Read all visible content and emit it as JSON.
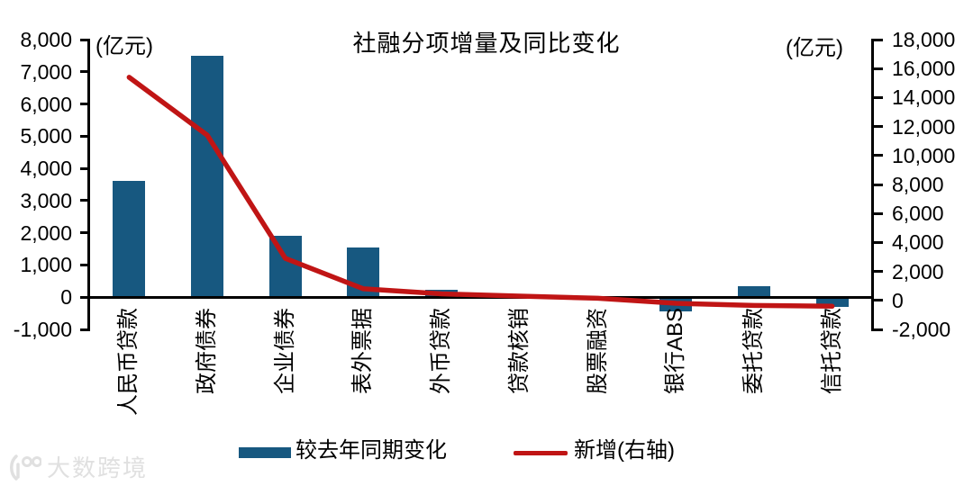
{
  "title": "社融分项增量及同比变化",
  "watermark": "大数跨境",
  "colors": {
    "bar": "#175880",
    "line": "#C01515",
    "axis": "#000000",
    "watermark": "#E0E0E0"
  },
  "left_axis": {
    "unit": "(亿元)",
    "min": -1000,
    "max": 8000,
    "step": 1000,
    "ticks": [
      "8,000",
      "7,000",
      "6,000",
      "5,000",
      "4,000",
      "3,000",
      "2,000",
      "1,000",
      "0",
      "-1,000"
    ]
  },
  "right_axis": {
    "unit": "(亿元)",
    "min": -2000,
    "max": 18000,
    "step": 2000,
    "ticks": [
      "18,000",
      "16,000",
      "14,000",
      "12,000",
      "10,000",
      "8,000",
      "6,000",
      "4,000",
      "2,000",
      "0",
      "-2,000"
    ]
  },
  "legend": [
    {
      "label": "较去年同期变化",
      "marker": "bar"
    },
    {
      "label": "新增(右轴)",
      "marker": "line"
    }
  ],
  "chart_data": {
    "type": "bar+line",
    "title": "社融分项增量及同比变化",
    "categories": [
      "人民币贷款",
      "政府债券",
      "企业债券",
      "表外票据",
      "外币贷款",
      "贷款核销",
      "股票融资",
      "银行ABS",
      "委托贷款",
      "信托贷款"
    ],
    "series": [
      {
        "name": "较去年同期变化",
        "type": "bar",
        "axis": "left",
        "values": [
          3600,
          7500,
          1900,
          1550,
          220,
          0,
          0,
          -450,
          330,
          -300
        ]
      },
      {
        "name": "新增(右轴)",
        "type": "line",
        "axis": "right",
        "values": [
          15400,
          11400,
          2900,
          800,
          450,
          300,
          150,
          -200,
          -350,
          -400
        ]
      }
    ],
    "left_ylim": [
      -1000,
      8000
    ],
    "right_ylim": [
      -2000,
      18000
    ],
    "left_axis_label": "(亿元)",
    "right_axis_label": "(亿元)",
    "grid": false,
    "legend_position": "bottom"
  }
}
